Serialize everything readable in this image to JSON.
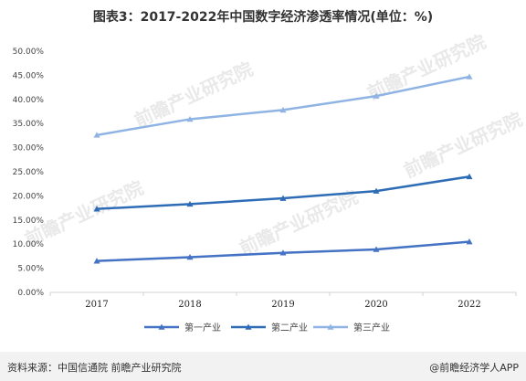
{
  "chart_title": "图表3：2017-2022年中国数字经济渗透率情况(单位：%)",
  "footer": {
    "source": "资料来源：中国信通院 前瞻产业研究院",
    "brand": "@前瞻经济学人APP"
  },
  "watermark": "前瞻产业研究院",
  "colors": {
    "primary": "#4472c4",
    "secondary": "#2e6db5",
    "tertiary": "#8fb4e3"
  },
  "chart_data": {
    "type": "line",
    "title": "图表3：2017-2022年中国数字经济渗透率情况(单位：%)",
    "x": [
      "2017",
      "2018",
      "2019",
      "2020",
      "2022"
    ],
    "xlabel": "",
    "ylabel": "",
    "ylim": [
      0,
      50
    ],
    "yticks": [
      "0.00%",
      "5.00%",
      "10.00%",
      "15.00%",
      "20.00%",
      "25.00%",
      "30.00%",
      "35.00%",
      "40.00%",
      "45.00%",
      "50.00%"
    ],
    "grid": false,
    "legend_position": "bottom",
    "series": [
      {
        "name": "第一产业",
        "values": [
          6.5,
          7.3,
          8.2,
          8.9,
          10.5
        ],
        "color": "#4472c4"
      },
      {
        "name": "第二产业",
        "values": [
          17.3,
          18.3,
          19.5,
          21.0,
          24.0
        ],
        "color": "#2e6db5"
      },
      {
        "name": "第三产业",
        "values": [
          32.6,
          35.9,
          37.8,
          40.7,
          44.7
        ],
        "color": "#8fb4e3"
      }
    ]
  }
}
